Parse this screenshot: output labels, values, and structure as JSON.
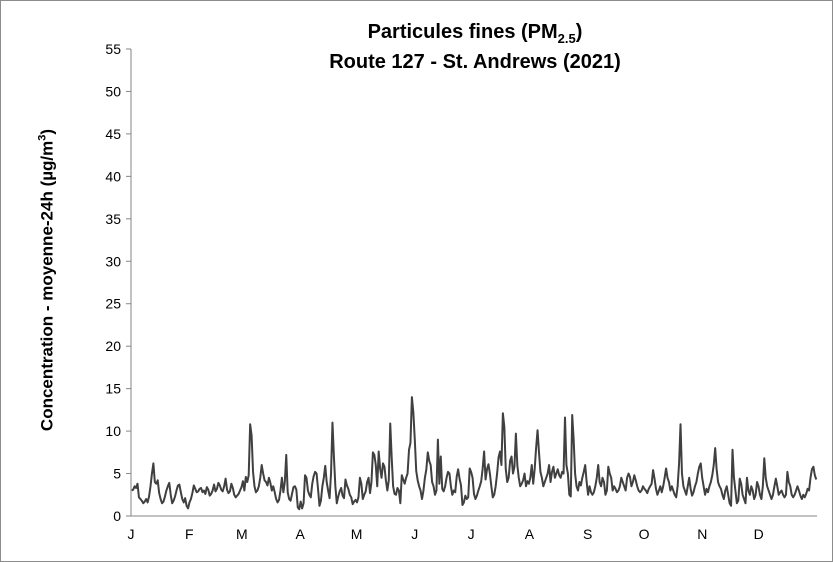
{
  "chart_data": {
    "type": "line",
    "title_line1": "Particules fines (PM",
    "title_sub": "2.5",
    "title_close": ")",
    "title_line2": "Route 127 - St. Andrews (2021)",
    "ylabel": "Concentration - moyenne-24h (µg/m",
    "ylabel_sup": "3",
    "ylabel_close": ")",
    "ylim": [
      0,
      55
    ],
    "yticks": [
      "0",
      "5",
      "10",
      "15",
      "20",
      "25",
      "30",
      "35",
      "40",
      "45",
      "50",
      "55"
    ],
    "months": [
      "J",
      "F",
      "M",
      "A",
      "M",
      "J",
      "J",
      "A",
      "S",
      "O",
      "N",
      "D"
    ],
    "grid": false,
    "line_color": "#404040",
    "series": [
      {
        "values": [
          3.0,
          3.1,
          3.5,
          3.3,
          3.8,
          2.2,
          2.0,
          1.8,
          1.5,
          1.7,
          2.0,
          1.6,
          2.3,
          3.5,
          5.0,
          6.2,
          4.0,
          3.8,
          4.2,
          2.7,
          2.0,
          1.5,
          1.7,
          2.3,
          3.0,
          3.5,
          3.9,
          2.5,
          1.5,
          1.8,
          2.3,
          3.0,
          3.6,
          3.7,
          2.8,
          2.0,
          1.6,
          2.1,
          1.2,
          0.9,
          1.6,
          2.0,
          2.7,
          3.6,
          3.2,
          2.8,
          2.9,
          3.2,
          3.3,
          2.8,
          3.0,
          2.6,
          3.4,
          3.1,
          2.4,
          2.6,
          3.0,
          3.7,
          2.9,
          3.2,
          3.9,
          3.6,
          3.1,
          2.9,
          3.5,
          4.4,
          3.1,
          2.7,
          2.9,
          3.8,
          3.3,
          2.5,
          2.2,
          2.4,
          2.6,
          3.0,
          3.4,
          4.1,
          3.0,
          4.6,
          4.0,
          4.8,
          10.8,
          9.5,
          5.2,
          3.5,
          2.8,
          3.0,
          3.5,
          4.5,
          6.0,
          5.0,
          4.2,
          4.0,
          3.6,
          4.5,
          3.9,
          3.0,
          3.5,
          2.8,
          2.0,
          1.6,
          1.9,
          3.0,
          4.5,
          2.8,
          4.0,
          7.2,
          2.8,
          2.0,
          1.8,
          2.6,
          3.4,
          3.5,
          3.1,
          1.0,
          0.8,
          1.7,
          0.9,
          1.5,
          4.8,
          4.5,
          3.0,
          2.5,
          2.2,
          3.8,
          4.7,
          5.2,
          5.0,
          3.2,
          1.2,
          1.8,
          3.5,
          4.5,
          5.9,
          4.0,
          3.0,
          2.1,
          5.0,
          11.0,
          7.0,
          3.5,
          1.5,
          2.3,
          2.9,
          3.3,
          2.4,
          2.1,
          4.3,
          3.6,
          3.2,
          2.5,
          2.2,
          1.4,
          1.7,
          1.9,
          1.6,
          2.2,
          4.5,
          3.8,
          2.0,
          2.5,
          2.9,
          4.0,
          4.5,
          2.7,
          4.0,
          7.5,
          7.2,
          6.0,
          3.5,
          7.6,
          5.6,
          4.5,
          6.2,
          5.8,
          4.2,
          3.0,
          4.2,
          10.9,
          6.9,
          3.5,
          2.6,
          2.5,
          3.3,
          3.0,
          1.5,
          4.8,
          4.3,
          3.8,
          4.5,
          5.0,
          7.8,
          8.6,
          14.0,
          12.2,
          9.0,
          5.3,
          4.2,
          3.5,
          3.0,
          2.0,
          3.0,
          4.5,
          5.5,
          7.5,
          6.5,
          6.0,
          4.0,
          3.5,
          2.5,
          3.0,
          9.0,
          3.8,
          7.0,
          3.2,
          2.9,
          3.5,
          4.5,
          5.2,
          5.0,
          3.5,
          2.5,
          3.0,
          2.8,
          4.6,
          5.5,
          4.4,
          3.6,
          1.3,
          1.6,
          2.4,
          2.0,
          2.2,
          5.6,
          5.2,
          4.5,
          2.6,
          2.0,
          2.4,
          3.0,
          3.5,
          4.1,
          5.6,
          7.6,
          4.3,
          5.5,
          6.1,
          5.0,
          3.5,
          2.2,
          2.5,
          3.5,
          5.0,
          6.9,
          7.6,
          6.0,
          12.1,
          10.5,
          5.5,
          4.0,
          4.5,
          6.5,
          7.0,
          5.0,
          5.8,
          9.7,
          6.0,
          4.5,
          3.5,
          3.8,
          4.2,
          5.0,
          3.5,
          4.1,
          3.8,
          4.5,
          6.0,
          3.8,
          5.5,
          8.0,
          10.1,
          7.5,
          5.2,
          4.5,
          3.5,
          4.0,
          4.5,
          5.0,
          6.0,
          4.0,
          5.2,
          5.8,
          4.5,
          5.0,
          5.5,
          4.8,
          4.5,
          5.2,
          5.0,
          11.6,
          6.0,
          5.0,
          2.5,
          2.3,
          11.9,
          9.0,
          5.0,
          3.5,
          3.0,
          4.0,
          3.6,
          4.5,
          5.2,
          6.0,
          4.0,
          2.5,
          3.5,
          2.8,
          2.5,
          2.8,
          3.5,
          4.5,
          6.0,
          4.0,
          3.5,
          4.5,
          4.0,
          2.5,
          3.0,
          5.8,
          5.0,
          4.5,
          3.0,
          3.5,
          3.2,
          2.8,
          3.0,
          3.5,
          4.5,
          4.0,
          3.5,
          3.0,
          4.5,
          5.0,
          4.6,
          3.5,
          4.0,
          4.8,
          4.2,
          3.5,
          3.0,
          2.8,
          3.0,
          3.5,
          3.2,
          3.0,
          2.7,
          3.2,
          3.5,
          3.8,
          5.4,
          4.4,
          3.2,
          2.5,
          3.0,
          3.5,
          2.8,
          3.5,
          4.5,
          5.6,
          4.5,
          4.0,
          3.0,
          3.5,
          3.0,
          2.5,
          2.2,
          3.5,
          6.2,
          10.8,
          5.0,
          3.5,
          3.0,
          2.5,
          3.5,
          4.5,
          3.2,
          2.4,
          2.8,
          3.5,
          4.0,
          5.0,
          5.8,
          6.2,
          4.5,
          3.5,
          2.5,
          3.2,
          2.8,
          3.5,
          4.0,
          4.8,
          6.0,
          8.0,
          5.5,
          4.0,
          3.5,
          3.2,
          2.5,
          2.0,
          3.0,
          3.5,
          2.5,
          1.5,
          1.2,
          7.8,
          4.5,
          3.0,
          1.5,
          1.8,
          4.4,
          3.8,
          2.5,
          2.0,
          1.5,
          4.5,
          3.0,
          2.5,
          3.5,
          3.0,
          2.0,
          2.5,
          4.0,
          3.5,
          2.5,
          2.0,
          3.5,
          6.8,
          4.5,
          3.5,
          3.0,
          2.5,
          2.0,
          2.5,
          3.5,
          4.4,
          3.5,
          2.5,
          2.8,
          3.0,
          2.5,
          2.2,
          2.5,
          5.2,
          4.0,
          3.5,
          2.5,
          2.2,
          2.5,
          3.0,
          3.5,
          3.0,
          2.4,
          2.0,
          2.5,
          2.2,
          2.6,
          3.2,
          3.0,
          4.5,
          5.5,
          5.8,
          4.8,
          4.3
        ]
      }
    ]
  }
}
